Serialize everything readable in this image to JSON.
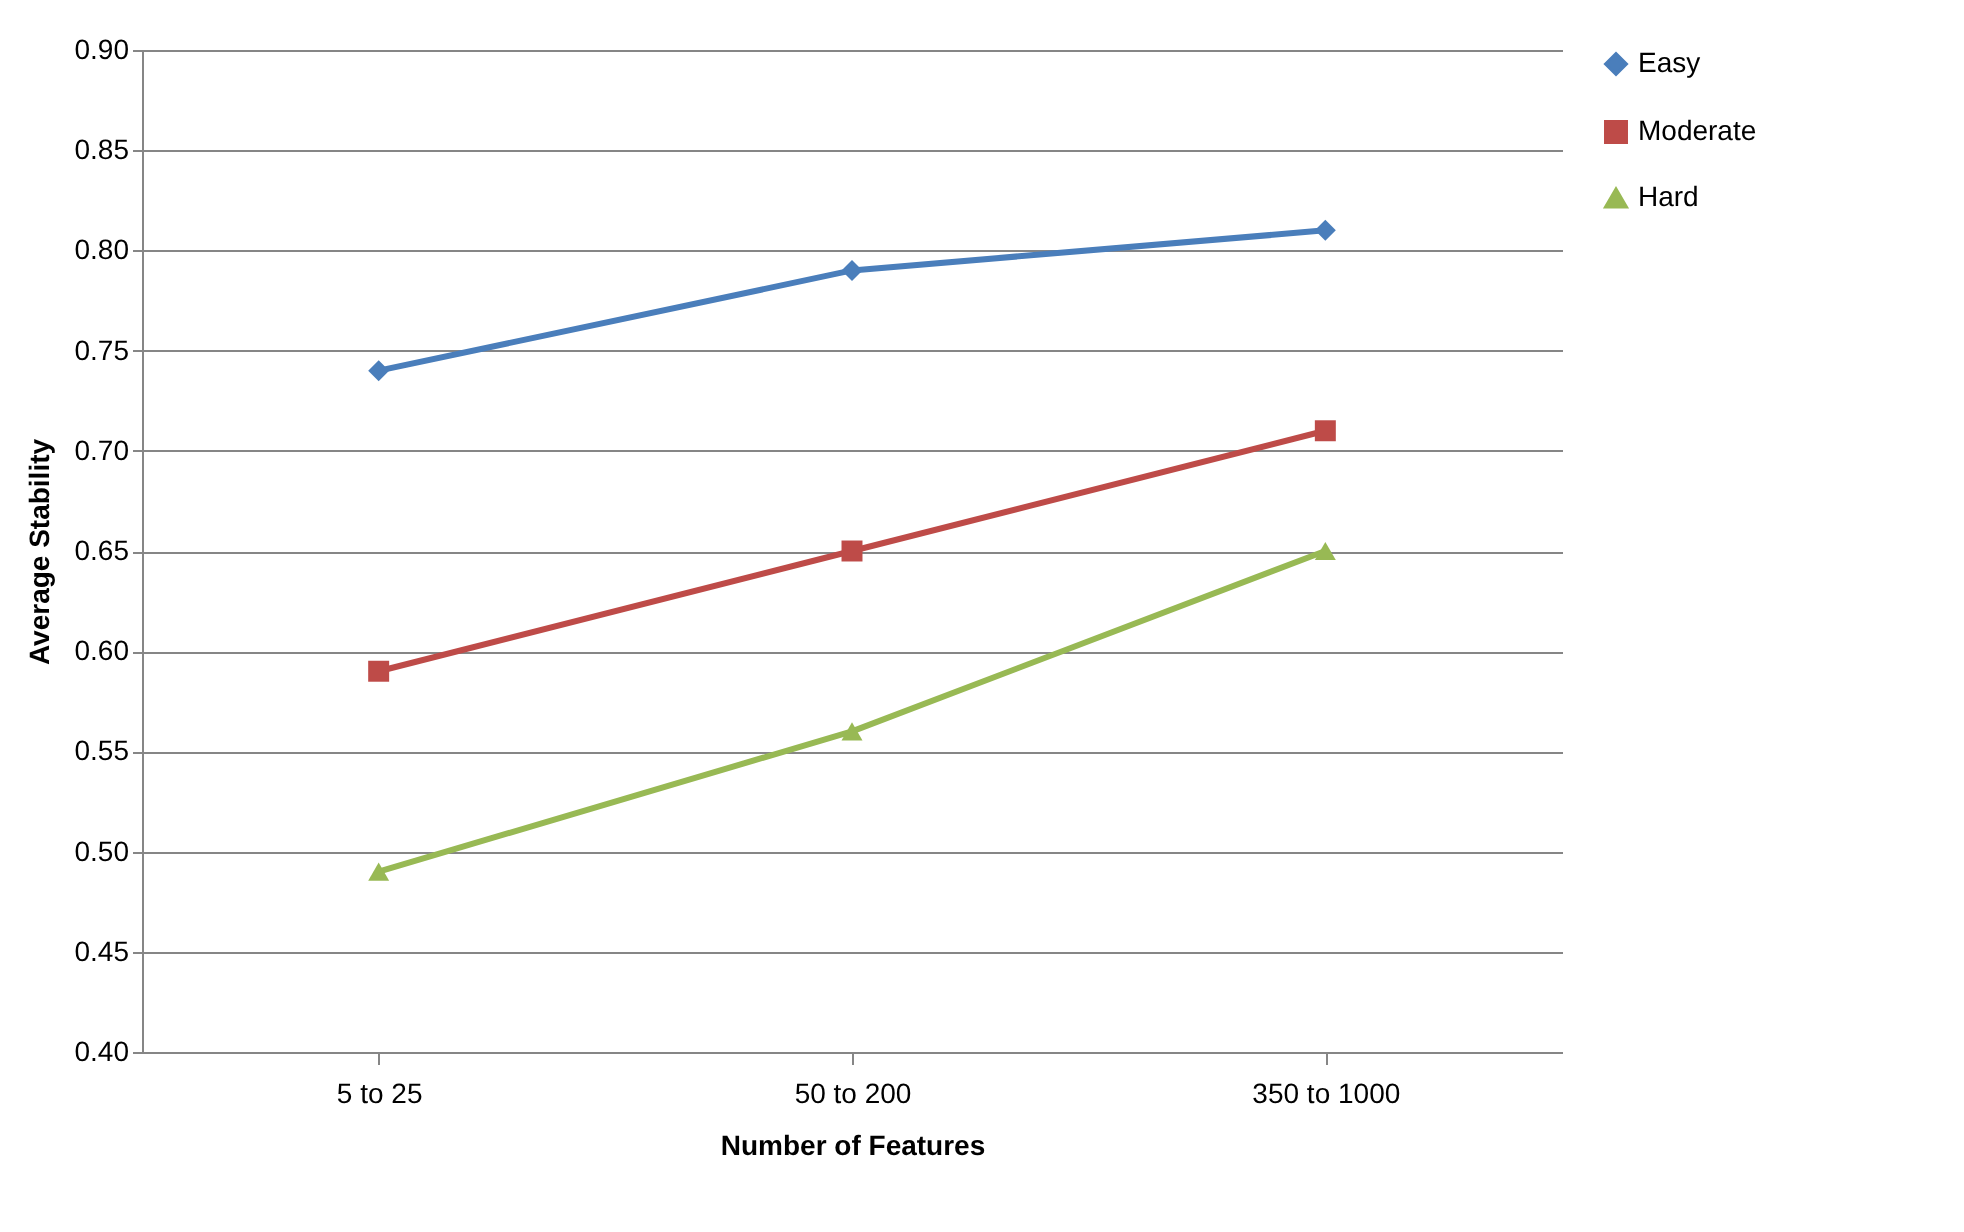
{
  "chart_data": {
    "type": "line",
    "xlabel": "Number of Features",
    "ylabel": "Average Stability",
    "categories": [
      "5 to 25",
      "50 to 200",
      "350 to 1000"
    ],
    "series": [
      {
        "name": "Easy",
        "color": "#4a7ebb",
        "marker": "diamond",
        "values": [
          0.74,
          0.79,
          0.81
        ]
      },
      {
        "name": "Moderate",
        "color": "#be4b48",
        "marker": "square",
        "values": [
          0.59,
          0.65,
          0.71
        ]
      },
      {
        "name": "Hard",
        "color": "#98b954",
        "marker": "triangle",
        "values": [
          0.49,
          0.56,
          0.65
        ]
      }
    ],
    "ylim": [
      0.4,
      0.9
    ],
    "yticks": [
      {
        "value": 0.4,
        "label": "0.40"
      },
      {
        "value": 0.45,
        "label": "0.45"
      },
      {
        "value": 0.5,
        "label": "0.50"
      },
      {
        "value": 0.55,
        "label": "0.55"
      },
      {
        "value": 0.6,
        "label": "0.60"
      },
      {
        "value": 0.65,
        "label": "0.65"
      },
      {
        "value": 0.7,
        "label": "0.70"
      },
      {
        "value": 0.75,
        "label": "0.75"
      },
      {
        "value": 0.8,
        "label": "0.80"
      },
      {
        "value": 0.85,
        "label": "0.85"
      },
      {
        "value": 0.9,
        "label": "0.90"
      }
    ],
    "grid": "y",
    "legend": "right"
  }
}
